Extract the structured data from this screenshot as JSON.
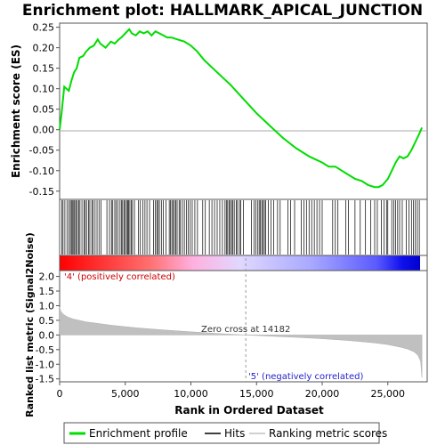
{
  "chart_data": {
    "type": "line",
    "title": "Enrichment plot: HALLMARK_APICAL_JUNCTION",
    "xlabel": "Rank in Ordered Dataset",
    "x_ticks": [
      "0",
      "5,000",
      "10,000",
      "15,000",
      "20,000",
      "25,000"
    ],
    "xlim": [
      0,
      28000
    ],
    "es_panel": {
      "ylabel": "Enrichment score (ES)",
      "ylim": [
        -0.17,
        0.26
      ],
      "y_ticks": [
        "0.25",
        "0.20",
        "0.15",
        "0.10",
        "0.05",
        "0.00",
        "-0.05",
        "-0.10",
        "-0.15"
      ],
      "series": [
        {
          "name": "Enrichment profile",
          "color": "#00dd00",
          "x": [
            0,
            150,
            350,
            700,
            900,
            1100,
            1300,
            1500,
            1800,
            2000,
            2300,
            2600,
            2900,
            3100,
            3500,
            3900,
            4200,
            4500,
            4700,
            5000,
            5300,
            5500,
            5800,
            6100,
            6400,
            6700,
            7000,
            7300,
            7600,
            7900,
            8200,
            8500,
            9000,
            9500,
            10000,
            10500,
            11000,
            12000,
            13000,
            14000,
            15000,
            16000,
            17000,
            18000,
            19000,
            20000,
            20500,
            21000,
            21500,
            22000,
            22500,
            23000,
            23500,
            24000,
            24300,
            24600,
            25000,
            25300,
            25600,
            25900,
            26200,
            26500,
            26800,
            27100,
            27400,
            27600
          ],
          "y": [
            0.0,
            0.04,
            0.105,
            0.095,
            0.12,
            0.14,
            0.15,
            0.175,
            0.18,
            0.19,
            0.2,
            0.205,
            0.22,
            0.21,
            0.2,
            0.215,
            0.21,
            0.22,
            0.225,
            0.235,
            0.245,
            0.235,
            0.23,
            0.24,
            0.235,
            0.24,
            0.23,
            0.24,
            0.235,
            0.23,
            0.225,
            0.225,
            0.22,
            0.215,
            0.205,
            0.19,
            0.17,
            0.14,
            0.11,
            0.075,
            0.04,
            0.01,
            -0.02,
            -0.045,
            -0.065,
            -0.08,
            -0.09,
            -0.09,
            -0.1,
            -0.11,
            -0.12,
            -0.125,
            -0.135,
            -0.14,
            -0.14,
            -0.135,
            -0.12,
            -0.1,
            -0.08,
            -0.065,
            -0.07,
            -0.065,
            -0.05,
            -0.03,
            -0.01,
            0.005
          ]
        }
      ]
    },
    "hits": {
      "name": "Hits",
      "x": [
        180,
        260,
        400,
        560,
        700,
        820,
        900,
        1000,
        1080,
        1150,
        1250,
        1350,
        1450,
        1550,
        1700,
        1850,
        1950,
        2050,
        2200,
        2300,
        2450,
        2550,
        2700,
        2850,
        3000,
        3150,
        3600,
        3800,
        3950,
        4050,
        4200,
        4300,
        4450,
        4600,
        4700,
        4800,
        4900,
        5000,
        5100,
        5180,
        5260,
        5350,
        5450,
        5550,
        5700,
        6000,
        6150,
        6350,
        6500,
        6650,
        6850,
        7150,
        7300,
        7400,
        7500,
        7600,
        7750,
        7900,
        8100,
        8350,
        8450,
        8550,
        8650,
        8750,
        8850,
        8950,
        9100,
        9200,
        9350,
        9500,
        9650,
        9800,
        9950,
        10100,
        10300,
        10500,
        10900,
        11100,
        11400,
        11600,
        11800,
        12000,
        12200,
        12400,
        12600,
        12700,
        12800,
        12900,
        13000,
        13100,
        13200,
        13300,
        13450,
        13550,
        13700,
        13800,
        14000,
        14600,
        14800,
        14950,
        15100,
        15200,
        15300,
        15400,
        15500,
        15600,
        15700,
        15900,
        16100,
        16300,
        16600,
        16800,
        17400,
        17600,
        17900,
        18400,
        18600,
        18800,
        19000,
        19200,
        19400,
        19600,
        19800,
        20000,
        20800,
        21000,
        21200,
        21800,
        22000,
        22500,
        22900,
        23300,
        23700,
        24000,
        24200,
        24500,
        24700,
        24900,
        25000,
        25300,
        25450,
        25600,
        25750,
        25900,
        26100,
        26400,
        26600,
        26800,
        26950,
        27100,
        27250,
        27400
      ]
    },
    "rank_panel": {
      "ylabel": "Ranked list metric (Signal2Noise)",
      "ylim": [
        -1.6,
        2.2
      ],
      "y_ticks": [
        "2.0",
        "1.5",
        "1.0",
        "0.5",
        "0.0",
        "-0.5",
        "-1.0",
        "-1.5"
      ],
      "series": [
        {
          "name": "Ranking metric scores",
          "color": "#c0c0c0",
          "x": [
            0,
            100,
            300,
            600,
            1000,
            2000,
            4000,
            6000,
            8000,
            10000,
            12000,
            14182,
            16000,
            18000,
            20000,
            22000,
            24000,
            25000,
            26000,
            26500,
            27000,
            27300,
            27500,
            27600
          ],
          "y": [
            0.95,
            0.8,
            0.7,
            0.62,
            0.55,
            0.45,
            0.33,
            0.24,
            0.17,
            0.11,
            0.05,
            0.0,
            -0.04,
            -0.08,
            -0.13,
            -0.19,
            -0.27,
            -0.33,
            -0.42,
            -0.48,
            -0.58,
            -0.7,
            -0.9,
            -1.45
          ]
        }
      ],
      "zero_cross_label": "Zero cross at 14182",
      "zero_cross": 14182,
      "pos_label": "'4' (positively correlated)",
      "neg_label": "'5' (negatively correlated)"
    },
    "legend": {
      "placement": "bottom",
      "items": [
        "Enrichment profile",
        "Hits",
        "Ranking metric scores"
      ]
    }
  }
}
